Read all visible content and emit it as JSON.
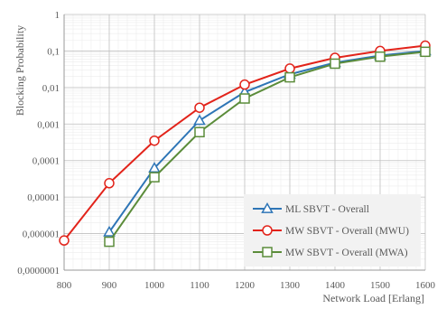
{
  "chart_data": {
    "type": "line",
    "title": "",
    "xlabel": "Network Load [Erlang]",
    "ylabel": "Blocking Probability",
    "y_scale": "log",
    "ylim": [
      1e-07,
      1
    ],
    "xlim": [
      800,
      1600
    ],
    "grid": true,
    "legend_position": "bottom-right",
    "x_tick_labels": [
      "800",
      "900",
      "1000",
      "1100",
      "1200",
      "1300",
      "1400",
      "1500",
      "1600"
    ],
    "y_tick_labels": [
      "0,0000001",
      "0,000001",
      "0,00001",
      "0,0001",
      "0,001",
      "0,01",
      "0,1",
      "1"
    ],
    "series": [
      {
        "name": "ML SBVT - Overall",
        "color": "#2E75B6",
        "marker": "triangle",
        "points": [
          {
            "x": 900,
            "y": 1.1e-06
          },
          {
            "x": 1000,
            "y": 6.2e-05
          },
          {
            "x": 1100,
            "y": 0.00125
          },
          {
            "x": 1200,
            "y": 0.0075
          },
          {
            "x": 1300,
            "y": 0.023
          },
          {
            "x": 1400,
            "y": 0.048
          },
          {
            "x": 1500,
            "y": 0.075
          },
          {
            "x": 1600,
            "y": 0.1
          }
        ]
      },
      {
        "name": "MW SBVT - Overall (MWU)",
        "color": "#E2231A",
        "marker": "circle",
        "points": [
          {
            "x": 800,
            "y": 6.5e-07
          },
          {
            "x": 900,
            "y": 2.4e-05
          },
          {
            "x": 1000,
            "y": 0.00035
          },
          {
            "x": 1100,
            "y": 0.0028
          },
          {
            "x": 1200,
            "y": 0.012
          },
          {
            "x": 1300,
            "y": 0.033
          },
          {
            "x": 1400,
            "y": 0.065
          },
          {
            "x": 1500,
            "y": 0.1
          },
          {
            "x": 1600,
            "y": 0.14
          }
        ]
      },
      {
        "name": "MW SBVT - Overall (MWA)",
        "color": "#5B8C3A",
        "marker": "square",
        "points": [
          {
            "x": 900,
            "y": 6e-07
          },
          {
            "x": 1000,
            "y": 3.5e-05
          },
          {
            "x": 1100,
            "y": 0.0006
          },
          {
            "x": 1200,
            "y": 0.005
          },
          {
            "x": 1300,
            "y": 0.019
          },
          {
            "x": 1400,
            "y": 0.045
          },
          {
            "x": 1500,
            "y": 0.07
          },
          {
            "x": 1600,
            "y": 0.095
          }
        ]
      }
    ]
  }
}
